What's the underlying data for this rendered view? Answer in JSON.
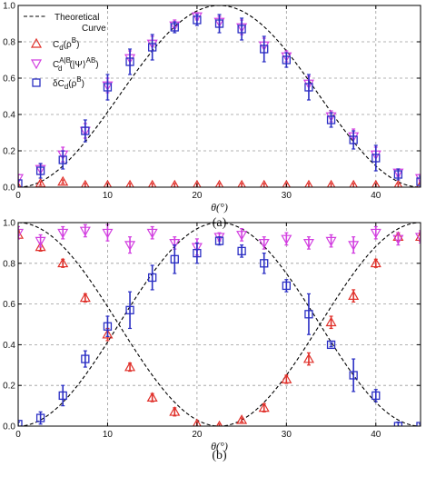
{
  "chart_data": [
    {
      "type": "scatter",
      "caption": "(a)",
      "xlabel": "θ(°)",
      "ylabel": "",
      "xlim": [
        0,
        45
      ],
      "ylim": [
        0,
        1.0
      ],
      "xticks": [
        "0",
        "10",
        "20",
        "30",
        "40"
      ],
      "yticks": [
        "0.0",
        "0.2",
        "0.4",
        "0.6",
        "0.8",
        "1.0"
      ],
      "grid": true,
      "legend_position": "top-left",
      "legend": {
        "theory": {
          "line1": "Theoretical",
          "line2": "Curve"
        },
        "s1": {
          "main": "C",
          "sub": "d",
          "tail": "(ρ",
          "sup": "B",
          "end": ")"
        },
        "s2": {
          "main": "C",
          "sub": "d",
          "sup": "A|B",
          "tail": "(|Ψ⟩",
          "sup2": "AB",
          "end": ")"
        },
        "s3": {
          "main": "δC",
          "sub": "d",
          "tail": "(ρ",
          "sup": "B",
          "end": ")"
        }
      },
      "theory_curves": [
        {
          "kind": "sin2",
          "color": "#000000",
          "style": "dashed"
        }
      ],
      "series": [
        {
          "key": "s1",
          "marker": "triangle-up",
          "color": "#e0302a",
          "x": [
            0,
            2.5,
            5,
            7.5,
            10,
            12.5,
            15,
            17.5,
            20,
            22.5,
            25,
            27.5,
            30,
            32.5,
            35,
            37.5,
            40,
            42.5,
            45
          ],
          "y": [
            0.0,
            0.02,
            0.03,
            0.01,
            0.01,
            0.01,
            0.01,
            0.01,
            0.01,
            0.01,
            0.01,
            0.01,
            0.01,
            0.01,
            0.01,
            0.01,
            0.01,
            0.01,
            0.01
          ],
          "err": [
            0.01,
            0.01,
            0.01,
            0.01,
            0.01,
            0.01,
            0.01,
            0.01,
            0.01,
            0.01,
            0.01,
            0.01,
            0.01,
            0.01,
            0.01,
            0.01,
            0.01,
            0.01,
            0.01
          ]
        },
        {
          "key": "s2",
          "marker": "triangle-down",
          "color": "#d23ee0",
          "x": [
            0,
            2.5,
            5,
            7.5,
            10,
            12.5,
            15,
            17.5,
            20,
            22.5,
            25,
            27.5,
            30,
            32.5,
            35,
            37.5,
            40,
            42.5,
            45
          ],
          "y": [
            0.05,
            0.1,
            0.18,
            0.31,
            0.56,
            0.71,
            0.79,
            0.89,
            0.94,
            0.91,
            0.88,
            0.78,
            0.72,
            0.57,
            0.39,
            0.28,
            0.18,
            0.08,
            0.05
          ],
          "err": [
            0.02,
            0.03,
            0.04,
            0.04,
            0.04,
            0.04,
            0.04,
            0.03,
            0.02,
            0.03,
            0.04,
            0.04,
            0.03,
            0.04,
            0.03,
            0.04,
            0.04,
            0.02,
            0.02
          ]
        },
        {
          "key": "s3",
          "marker": "square",
          "color": "#2b2fc4",
          "x": [
            0,
            2.5,
            5,
            7.5,
            10,
            12.5,
            15,
            17.5,
            20,
            22.5,
            25,
            27.5,
            30,
            32.5,
            35,
            37.5,
            40,
            42.5,
            45
          ],
          "y": [
            0.02,
            0.09,
            0.15,
            0.31,
            0.55,
            0.69,
            0.77,
            0.88,
            0.92,
            0.9,
            0.87,
            0.76,
            0.7,
            0.55,
            0.37,
            0.26,
            0.16,
            0.07,
            0.03
          ],
          "err": [
            0.02,
            0.04,
            0.05,
            0.06,
            0.07,
            0.07,
            0.07,
            0.03,
            0.03,
            0.05,
            0.06,
            0.07,
            0.04,
            0.07,
            0.04,
            0.05,
            0.07,
            0.03,
            0.03
          ]
        }
      ]
    },
    {
      "type": "scatter",
      "caption": "(b)",
      "xlabel": "θ(°)",
      "ylabel": "",
      "xlim": [
        0,
        45
      ],
      "ylim": [
        0,
        1.0
      ],
      "xticks": [
        "0",
        "10",
        "20",
        "30",
        "40"
      ],
      "yticks": [
        "0.0",
        "0.2",
        "0.4",
        "0.6",
        "0.8",
        "1.0"
      ],
      "grid": true,
      "theory_curves": [
        {
          "kind": "sin2",
          "color": "#000000",
          "style": "dashed"
        },
        {
          "kind": "cos2",
          "color": "#000000",
          "style": "dashed"
        }
      ],
      "series": [
        {
          "key": "s1",
          "marker": "triangle-up",
          "color": "#e0302a",
          "x": [
            0,
            2.5,
            5,
            7.5,
            10,
            12.5,
            15,
            17.5,
            20,
            22.5,
            25,
            27.5,
            30,
            32.5,
            35,
            37.5,
            40,
            42.5,
            45
          ],
          "y": [
            0.94,
            0.88,
            0.8,
            0.63,
            0.45,
            0.29,
            0.14,
            0.07,
            0.01,
            0.0,
            0.03,
            0.09,
            0.23,
            0.33,
            0.51,
            0.64,
            0.8,
            0.93,
            0.93
          ],
          "err": [
            0.02,
            0.02,
            0.02,
            0.02,
            0.03,
            0.02,
            0.02,
            0.02,
            0.01,
            0.01,
            0.01,
            0.02,
            0.02,
            0.03,
            0.03,
            0.03,
            0.02,
            0.02,
            0.02
          ]
        },
        {
          "key": "s2",
          "marker": "triangle-down",
          "color": "#d23ee0",
          "x": [
            0,
            2.5,
            5,
            7.5,
            10,
            12.5,
            15,
            17.5,
            20,
            22.5,
            25,
            27.5,
            30,
            32.5,
            35,
            37.5,
            40,
            42.5,
            45
          ],
          "y": [
            0.95,
            0.91,
            0.95,
            0.96,
            0.95,
            0.89,
            0.95,
            0.9,
            0.88,
            0.93,
            0.94,
            0.9,
            0.92,
            0.9,
            0.91,
            0.89,
            0.95,
            0.92,
            0.93
          ],
          "err": [
            0.03,
            0.03,
            0.03,
            0.03,
            0.04,
            0.04,
            0.03,
            0.03,
            0.04,
            0.02,
            0.03,
            0.03,
            0.03,
            0.03,
            0.03,
            0.04,
            0.03,
            0.03,
            0.03
          ]
        },
        {
          "key": "s3",
          "marker": "square",
          "color": "#2b2fc4",
          "x": [
            0,
            2.5,
            5,
            7.5,
            10,
            12.5,
            15,
            17.5,
            20,
            22.5,
            25,
            27.5,
            30,
            32.5,
            35,
            37.5,
            40,
            42.5,
            45
          ],
          "y": [
            0.01,
            0.04,
            0.15,
            0.33,
            0.49,
            0.57,
            0.73,
            0.82,
            0.85,
            0.91,
            0.86,
            0.8,
            0.69,
            0.55,
            0.4,
            0.25,
            0.15,
            0.0,
            0.0
          ],
          "err": [
            0.01,
            0.03,
            0.05,
            0.04,
            0.05,
            0.09,
            0.06,
            0.07,
            0.05,
            0.02,
            0.03,
            0.05,
            0.03,
            0.1,
            0.01,
            0.08,
            0.03,
            0.02,
            0.01
          ]
        }
      ]
    }
  ]
}
